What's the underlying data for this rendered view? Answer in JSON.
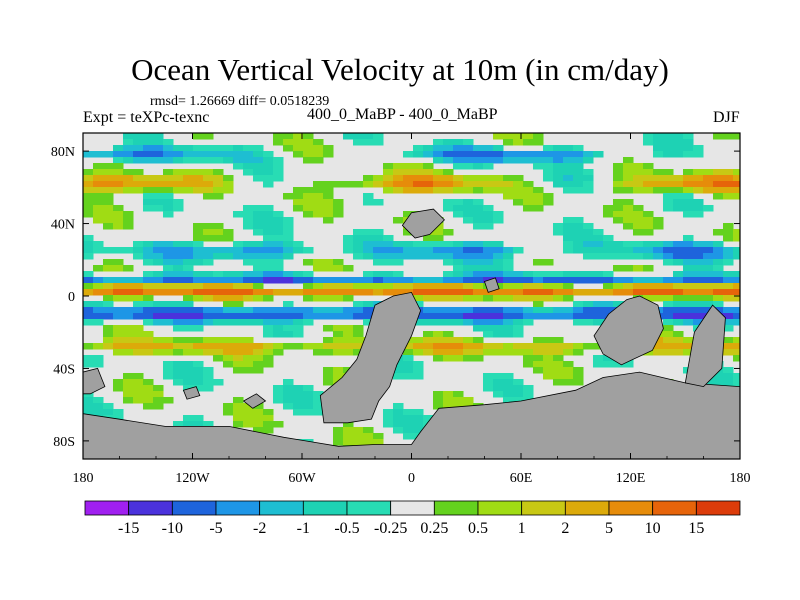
{
  "chart_data": {
    "type": "heatmap",
    "title": "Ocean Vertical Velocity at 10m (in cm/day)",
    "stats_line": "rmsd= 1.26669 diff= 0.0518239",
    "left_label": "Expt = teXPc-texnc",
    "center_label": "400_0_MaBP - 400_0_MaBP",
    "right_label": "DJF",
    "x_ticks": [
      "180",
      "120W",
      "60W",
      "0",
      "60E",
      "120E",
      "180"
    ],
    "x_tick_values": [
      -180,
      -120,
      -60,
      0,
      60,
      120,
      180
    ],
    "y_ticks": [
      "80N",
      "40N",
      "0",
      "40S",
      "80S"
    ],
    "y_tick_values": [
      80,
      40,
      0,
      -40,
      -80
    ],
    "xlim": [
      -180,
      180
    ],
    "ylim": [
      -90,
      90
    ],
    "colorbar": {
      "labels": [
        "-15",
        "-10",
        "-5",
        "-2",
        "-1",
        "-0.5",
        "-0.25",
        "0.25",
        "0.5",
        "1",
        "2",
        "5",
        "10",
        "15"
      ],
      "colors": [
        "#a020f0",
        "#4b32dc",
        "#1e64dc",
        "#1e96e6",
        "#1ebed2",
        "#1ed2b4",
        "#28dcb4",
        "#e6e6e6",
        "#64d21e",
        "#a0dc14",
        "#c8c814",
        "#dcaa0a",
        "#e68c0a",
        "#e6640a",
        "#dc3c0a"
      ]
    },
    "land_color": "#a0a0a0"
  }
}
